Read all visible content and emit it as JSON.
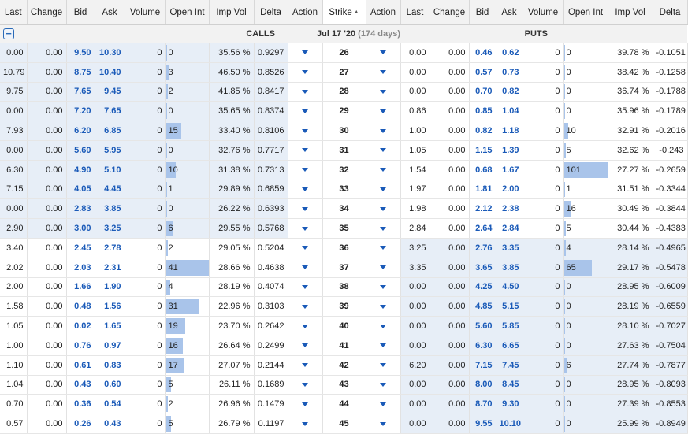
{
  "headers": {
    "calls": [
      "Last",
      "Change",
      "Bid",
      "Ask",
      "Volume",
      "Open Int",
      "Imp Vol",
      "Delta",
      "Action"
    ],
    "strike": "Strike",
    "puts": [
      "Action",
      "Last",
      "Change",
      "Bid",
      "Ask",
      "Volume",
      "Open Int",
      "Imp Vol",
      "Delta"
    ]
  },
  "section": {
    "calls_label": "CALLS",
    "expiry_date": "Jul 17 '20",
    "expiry_days": "(174 days)",
    "puts_label": "PUTS"
  },
  "colors": {
    "bid_ask": "#1a5ab8",
    "itm_shade": "#e7eef7",
    "oi_bar": "#a9c4ea",
    "header_bg": "#f2f2f2"
  },
  "icons": {
    "collapse": "minus-square-icon",
    "action": "dropdown-arrow-icon",
    "sort": "sort-ascending-icon"
  },
  "rows": [
    {
      "strike": "26",
      "call": {
        "last": "0.00",
        "change": "0.00",
        "bid": "9.50",
        "ask": "10.30",
        "volume": "0",
        "oi": "0",
        "oi_frac": 0,
        "iv": "35.56 %",
        "delta": "0.9297",
        "itm": true
      },
      "put": {
        "last": "0.00",
        "change": "0.00",
        "bid": "0.46",
        "ask": "0.62",
        "volume": "0",
        "oi": "0",
        "oi_frac": 0,
        "iv": "39.78 %",
        "delta": "-0.1051",
        "itm": false
      }
    },
    {
      "strike": "27",
      "call": {
        "last": "10.79",
        "change": "0.00",
        "bid": "8.75",
        "ask": "10.40",
        "volume": "0",
        "oi": "3",
        "oi_frac": 0.06,
        "iv": "46.50 %",
        "delta": "0.8526",
        "itm": true
      },
      "put": {
        "last": "0.00",
        "change": "0.00",
        "bid": "0.57",
        "ask": "0.73",
        "volume": "0",
        "oi": "0",
        "oi_frac": 0,
        "iv": "38.42 %",
        "delta": "-0.1258",
        "itm": false
      }
    },
    {
      "strike": "28",
      "call": {
        "last": "9.75",
        "change": "0.00",
        "bid": "7.65",
        "ask": "9.45",
        "volume": "0",
        "oi": "2",
        "oi_frac": 0.04,
        "iv": "41.85 %",
        "delta": "0.8417",
        "itm": true
      },
      "put": {
        "last": "0.00",
        "change": "0.00",
        "bid": "0.70",
        "ask": "0.82",
        "volume": "0",
        "oi": "0",
        "oi_frac": 0,
        "iv": "36.74 %",
        "delta": "-0.1788",
        "itm": false
      }
    },
    {
      "strike": "29",
      "call": {
        "last": "0.00",
        "change": "0.00",
        "bid": "7.20",
        "ask": "7.65",
        "volume": "0",
        "oi": "0",
        "oi_frac": 0,
        "iv": "35.65 %",
        "delta": "0.8374",
        "itm": true
      },
      "put": {
        "last": "0.86",
        "change": "0.00",
        "bid": "0.85",
        "ask": "1.04",
        "volume": "0",
        "oi": "0",
        "oi_frac": 0,
        "iv": "35.96 %",
        "delta": "-0.1789",
        "itm": false
      }
    },
    {
      "strike": "30",
      "call": {
        "last": "7.93",
        "change": "0.00",
        "bid": "6.20",
        "ask": "6.85",
        "volume": "0",
        "oi": "15",
        "oi_frac": 0.37,
        "iv": "33.40 %",
        "delta": "0.8106",
        "itm": true
      },
      "put": {
        "last": "1.00",
        "change": "0.00",
        "bid": "0.82",
        "ask": "1.18",
        "volume": "0",
        "oi": "10",
        "oi_frac": 0.1,
        "iv": "32.91 %",
        "delta": "-0.2016",
        "itm": false
      }
    },
    {
      "strike": "31",
      "call": {
        "last": "0.00",
        "change": "0.00",
        "bid": "5.60",
        "ask": "5.95",
        "volume": "0",
        "oi": "0",
        "oi_frac": 0,
        "iv": "32.76 %",
        "delta": "0.7717",
        "itm": true
      },
      "put": {
        "last": "1.05",
        "change": "0.00",
        "bid": "1.15",
        "ask": "1.39",
        "volume": "0",
        "oi": "5",
        "oi_frac": 0.05,
        "iv": "32.62 %",
        "delta": "-0.243",
        "itm": false
      }
    },
    {
      "strike": "32",
      "call": {
        "last": "6.30",
        "change": "0.00",
        "bid": "4.90",
        "ask": "5.10",
        "volume": "0",
        "oi": "10",
        "oi_frac": 0.24,
        "iv": "31.38 %",
        "delta": "0.7313",
        "itm": true
      },
      "put": {
        "last": "1.54",
        "change": "0.00",
        "bid": "0.68",
        "ask": "1.67",
        "volume": "0",
        "oi": "101",
        "oi_frac": 1.0,
        "iv": "27.27 %",
        "delta": "-0.2659",
        "itm": false
      }
    },
    {
      "strike": "33",
      "call": {
        "last": "7.15",
        "change": "0.00",
        "bid": "4.05",
        "ask": "4.45",
        "volume": "0",
        "oi": "1",
        "oi_frac": 0.03,
        "iv": "29.89 %",
        "delta": "0.6859",
        "itm": true
      },
      "put": {
        "last": "1.97",
        "change": "0.00",
        "bid": "1.81",
        "ask": "2.00",
        "volume": "0",
        "oi": "1",
        "oi_frac": 0.01,
        "iv": "31.51 %",
        "delta": "-0.3344",
        "itm": false
      }
    },
    {
      "strike": "34",
      "call": {
        "last": "0.00",
        "change": "0.00",
        "bid": "2.83",
        "ask": "3.85",
        "volume": "0",
        "oi": "0",
        "oi_frac": 0,
        "iv": "26.22 %",
        "delta": "0.6393",
        "itm": true
      },
      "put": {
        "last": "1.98",
        "change": "0.00",
        "bid": "2.12",
        "ask": "2.38",
        "volume": "0",
        "oi": "16",
        "oi_frac": 0.16,
        "iv": "30.49 %",
        "delta": "-0.3844",
        "itm": false
      }
    },
    {
      "strike": "35",
      "call": {
        "last": "2.90",
        "change": "0.00",
        "bid": "3.00",
        "ask": "3.25",
        "volume": "0",
        "oi": "6",
        "oi_frac": 0.15,
        "iv": "29.55 %",
        "delta": "0.5768",
        "itm": true
      },
      "put": {
        "last": "2.84",
        "change": "0.00",
        "bid": "2.64",
        "ask": "2.84",
        "volume": "0",
        "oi": "5",
        "oi_frac": 0.05,
        "iv": "30.44 %",
        "delta": "-0.4383",
        "itm": false
      }
    },
    {
      "strike": "36",
      "call": {
        "last": "3.40",
        "change": "0.00",
        "bid": "2.45",
        "ask": "2.78",
        "volume": "0",
        "oi": "2",
        "oi_frac": 0.05,
        "iv": "29.05 %",
        "delta": "0.5204",
        "itm": false
      },
      "put": {
        "last": "3.25",
        "change": "0.00",
        "bid": "2.76",
        "ask": "3.35",
        "volume": "0",
        "oi": "4",
        "oi_frac": 0.04,
        "iv": "28.14 %",
        "delta": "-0.4965",
        "itm": true
      }
    },
    {
      "strike": "37",
      "call": {
        "last": "2.02",
        "change": "0.00",
        "bid": "2.03",
        "ask": "2.31",
        "volume": "0",
        "oi": "41",
        "oi_frac": 1.0,
        "iv": "28.66 %",
        "delta": "0.4638",
        "itm": false
      },
      "put": {
        "last": "3.35",
        "change": "0.00",
        "bid": "3.65",
        "ask": "3.85",
        "volume": "0",
        "oi": "65",
        "oi_frac": 0.64,
        "iv": "29.17 %",
        "delta": "-0.5478",
        "itm": true
      }
    },
    {
      "strike": "38",
      "call": {
        "last": "2.00",
        "change": "0.00",
        "bid": "1.66",
        "ask": "1.90",
        "volume": "0",
        "oi": "4",
        "oi_frac": 0.1,
        "iv": "28.19 %",
        "delta": "0.4074",
        "itm": false
      },
      "put": {
        "last": "0.00",
        "change": "0.00",
        "bid": "4.25",
        "ask": "4.50",
        "volume": "0",
        "oi": "0",
        "oi_frac": 0,
        "iv": "28.95 %",
        "delta": "-0.6009",
        "itm": true
      }
    },
    {
      "strike": "39",
      "call": {
        "last": "1.58",
        "change": "0.00",
        "bid": "0.48",
        "ask": "1.56",
        "volume": "0",
        "oi": "31",
        "oi_frac": 0.76,
        "iv": "22.96 %",
        "delta": "0.3103",
        "itm": false
      },
      "put": {
        "last": "0.00",
        "change": "0.00",
        "bid": "4.85",
        "ask": "5.15",
        "volume": "0",
        "oi": "0",
        "oi_frac": 0,
        "iv": "28.19 %",
        "delta": "-0.6559",
        "itm": true
      }
    },
    {
      "strike": "40",
      "call": {
        "last": "1.05",
        "change": "0.00",
        "bid": "0.02",
        "ask": "1.65",
        "volume": "0",
        "oi": "19",
        "oi_frac": 0.46,
        "iv": "23.70 %",
        "delta": "0.2642",
        "itm": false
      },
      "put": {
        "last": "0.00",
        "change": "0.00",
        "bid": "5.60",
        "ask": "5.85",
        "volume": "0",
        "oi": "0",
        "oi_frac": 0,
        "iv": "28.10 %",
        "delta": "-0.7027",
        "itm": true
      }
    },
    {
      "strike": "41",
      "call": {
        "last": "1.00",
        "change": "0.00",
        "bid": "0.76",
        "ask": "0.97",
        "volume": "0",
        "oi": "16",
        "oi_frac": 0.39,
        "iv": "26.64 %",
        "delta": "0.2499",
        "itm": false
      },
      "put": {
        "last": "0.00",
        "change": "0.00",
        "bid": "6.30",
        "ask": "6.65",
        "volume": "0",
        "oi": "0",
        "oi_frac": 0,
        "iv": "27.63 %",
        "delta": "-0.7504",
        "itm": true
      }
    },
    {
      "strike": "42",
      "call": {
        "last": "1.10",
        "change": "0.00",
        "bid": "0.61",
        "ask": "0.83",
        "volume": "0",
        "oi": "17",
        "oi_frac": 0.41,
        "iv": "27.07 %",
        "delta": "0.2144",
        "itm": false
      },
      "put": {
        "last": "6.20",
        "change": "0.00",
        "bid": "7.15",
        "ask": "7.45",
        "volume": "0",
        "oi": "6",
        "oi_frac": 0.06,
        "iv": "27.74 %",
        "delta": "-0.7877",
        "itm": true
      }
    },
    {
      "strike": "43",
      "call": {
        "last": "1.04",
        "change": "0.00",
        "bid": "0.43",
        "ask": "0.60",
        "volume": "0",
        "oi": "5",
        "oi_frac": 0.12,
        "iv": "26.11 %",
        "delta": "0.1689",
        "itm": false
      },
      "put": {
        "last": "0.00",
        "change": "0.00",
        "bid": "8.00",
        "ask": "8.45",
        "volume": "0",
        "oi": "0",
        "oi_frac": 0,
        "iv": "28.95 %",
        "delta": "-0.8093",
        "itm": true
      }
    },
    {
      "strike": "44",
      "call": {
        "last": "0.70",
        "change": "0.00",
        "bid": "0.36",
        "ask": "0.54",
        "volume": "0",
        "oi": "2",
        "oi_frac": 0.05,
        "iv": "26.96 %",
        "delta": "0.1479",
        "itm": false
      },
      "put": {
        "last": "0.00",
        "change": "0.00",
        "bid": "8.70",
        "ask": "9.30",
        "volume": "0",
        "oi": "0",
        "oi_frac": 0,
        "iv": "27.39 %",
        "delta": "-0.8553",
        "itm": true
      }
    },
    {
      "strike": "45",
      "call": {
        "last": "0.57",
        "change": "0.00",
        "bid": "0.26",
        "ask": "0.43",
        "volume": "0",
        "oi": "5",
        "oi_frac": 0.12,
        "iv": "26.79 %",
        "delta": "0.1197",
        "itm": false
      },
      "put": {
        "last": "0.00",
        "change": "0.00",
        "bid": "9.55",
        "ask": "10.10",
        "volume": "0",
        "oi": "0",
        "oi_frac": 0,
        "iv": "25.99 %",
        "delta": "-0.8949",
        "itm": true
      }
    }
  ]
}
